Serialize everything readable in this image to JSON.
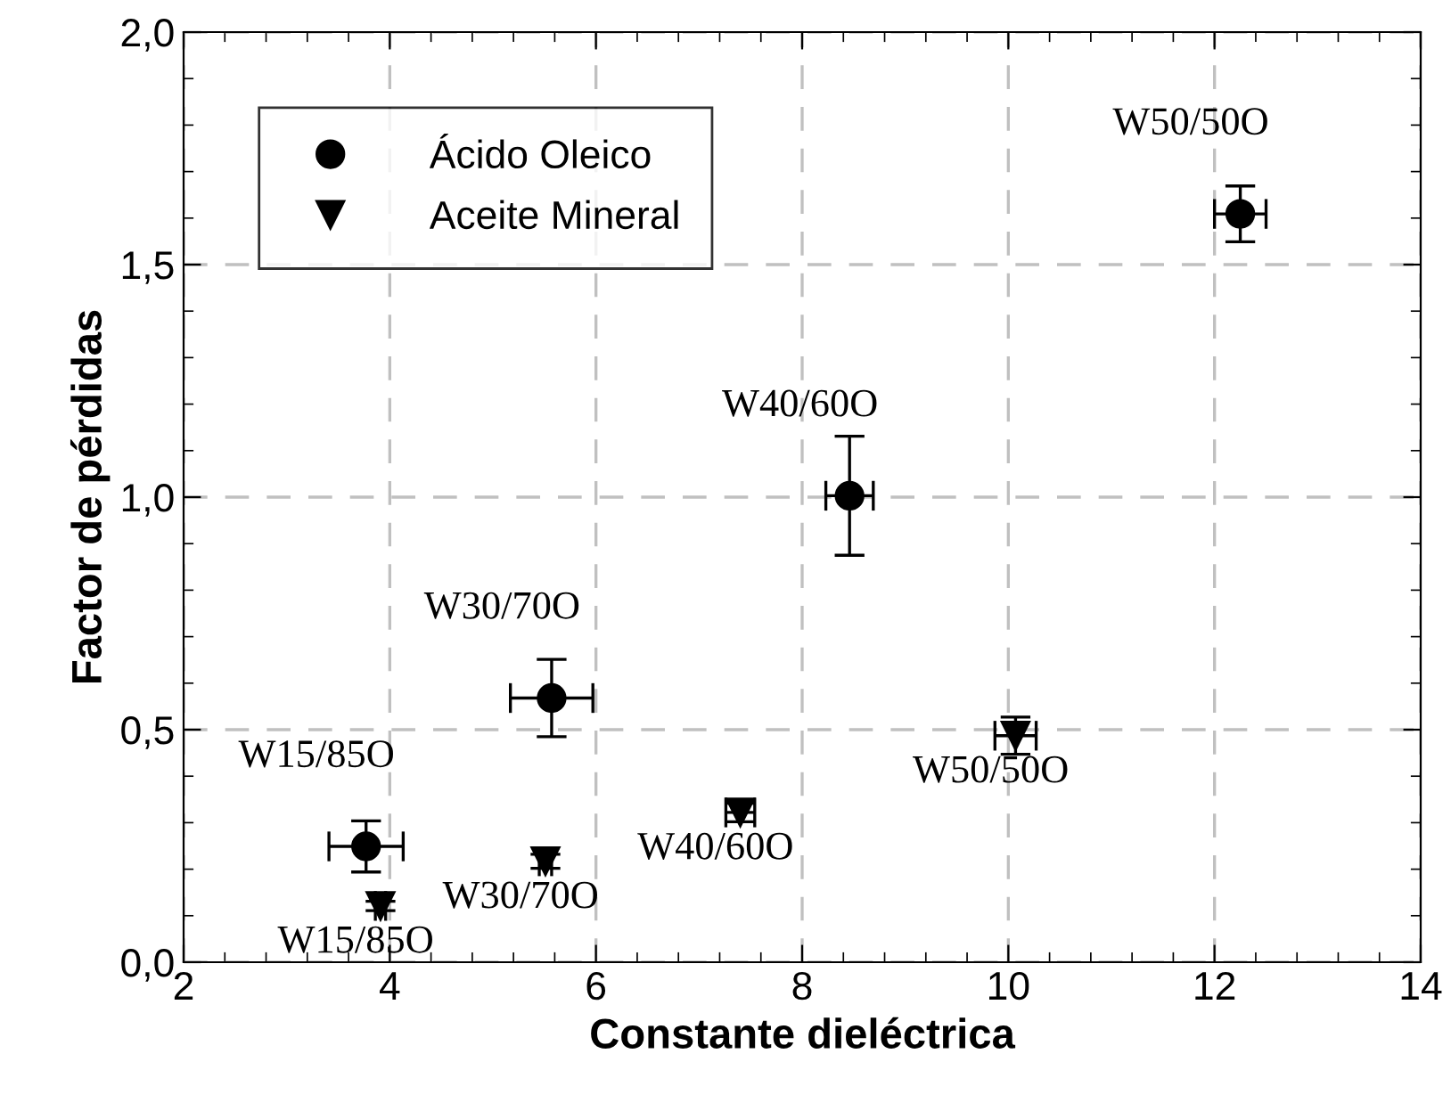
{
  "chart_data": {
    "type": "scatter",
    "xlabel": "Constante dieléctrica",
    "ylabel": "Factor de pérdidas",
    "xlim": [
      2,
      14
    ],
    "xticks": [
      2,
      4,
      6,
      8,
      10,
      12,
      14
    ],
    "ylim": [
      0,
      2.0
    ],
    "yticks": [
      {
        "value": 0,
        "label": "0,0"
      },
      {
        "value": 0.5,
        "label": "0,5"
      },
      {
        "value": 1.0,
        "label": "1,0"
      },
      {
        "value": 1.5,
        "label": "1,5"
      },
      {
        "value": 2.0,
        "label": "2,0"
      }
    ],
    "grid": true,
    "legend": "top left",
    "series": [
      {
        "name": "Ácido Oleico",
        "color": "#000000",
        "marker": "circle",
        "x": [
          3.77,
          5.57,
          8.46,
          12.25
        ],
        "values": [
          0.249,
          0.568,
          1.003,
          1.609
        ],
        "errors": [
          0.055,
          0.083,
          0.128,
          0.06
        ],
        "xerrors": [
          0.36,
          0.4,
          0.23,
          0.25
        ]
      },
      {
        "name": "Aceite Mineral",
        "color": "#000000",
        "marker": "triangle",
        "x": [
          3.91,
          5.51,
          7.4,
          10.07
        ],
        "values": [
          0.121,
          0.217,
          0.322,
          0.487
        ],
        "errors": [
          0.01,
          0.015,
          0.02,
          0.04
        ],
        "xerrors": [
          0.05,
          0.06,
          0.14,
          0.2
        ]
      }
    ],
    "annotations": [
      {
        "text": "W50/50O",
        "x": 12.25,
        "y": 1.609
      },
      {
        "text": "W40/60O",
        "x": 8.46,
        "y": 1.003
      },
      {
        "text": "W30/70O",
        "x": 5.57,
        "y": 0.568
      },
      {
        "text": "W15/85O",
        "x": 3.77,
        "y": 0.249
      },
      {
        "text": "W15/85O",
        "x": 3.91,
        "y": 0.121
      },
      {
        "text": "W30/70O",
        "x": 5.51,
        "y": 0.217
      },
      {
        "text": "W40/60O",
        "x": 7.4,
        "y": 0.322
      },
      {
        "text": "W50/50O",
        "x": 10.07,
        "y": 0.487
      }
    ]
  }
}
